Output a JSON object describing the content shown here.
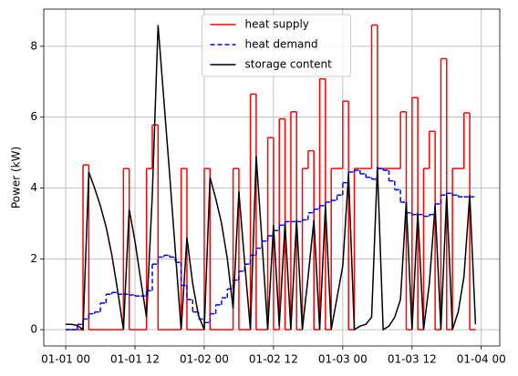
{
  "chart_data": {
    "type": "line",
    "ylabel": "Power (kW)",
    "x": [
      0,
      1,
      2,
      3,
      4,
      5,
      6,
      7,
      8,
      9,
      10,
      11,
      12,
      13,
      14,
      15,
      16,
      17,
      18,
      19,
      20,
      21,
      22,
      23,
      24,
      25,
      26,
      27,
      28,
      29,
      30,
      31,
      32,
      33,
      34,
      35,
      36,
      37,
      38,
      39,
      40,
      41,
      42,
      43,
      44,
      45,
      46,
      47,
      48,
      49,
      50,
      51,
      52,
      53,
      54,
      55,
      56,
      57,
      58,
      59,
      60,
      61,
      62,
      63,
      64,
      65,
      66,
      67,
      68,
      69,
      70,
      71
    ],
    "series": [
      {
        "name": "heat supply",
        "color": "#ff0000",
        "linestyle": "solid",
        "drawstyle": "steps-post",
        "values": [
          0,
          0,
          0,
          4.65,
          0,
          0,
          0,
          0,
          0,
          0,
          4.55,
          0,
          0,
          0,
          4.55,
          5.78,
          0,
          0,
          0,
          0,
          4.55,
          0,
          0,
          0,
          4.55,
          0,
          0,
          0,
          0,
          4.55,
          0,
          0,
          6.65,
          0,
          0,
          5.42,
          0,
          5.95,
          0,
          6.15,
          0,
          4.55,
          5.05,
          0,
          7.08,
          0,
          4.55,
          4.55,
          6.45,
          0,
          4.55,
          4.55,
          4.55,
          8.6,
          4.55,
          4.55,
          4.55,
          4.55,
          6.15,
          0,
          6.55,
          0,
          4.55,
          5.6,
          0,
          7.65,
          0,
          4.55,
          4.55,
          6.12,
          0,
          0
        ]
      },
      {
        "name": "heat demand",
        "color": "#0000ff",
        "linestyle": "dashed",
        "drawstyle": "steps-post",
        "values": [
          0,
          0,
          0.15,
          0.3,
          0.45,
          0.5,
          0.75,
          1.0,
          1.05,
          1.0,
          1.0,
          0.98,
          0.95,
          0.95,
          1.1,
          1.85,
          2.05,
          2.1,
          2.05,
          1.9,
          1.25,
          0.85,
          0.5,
          0.3,
          0.2,
          0.45,
          0.7,
          0.9,
          1.15,
          1.4,
          1.65,
          1.85,
          2.1,
          2.3,
          2.5,
          2.65,
          2.8,
          2.95,
          3.05,
          3.05,
          3.05,
          3.1,
          3.3,
          3.4,
          3.5,
          3.6,
          3.65,
          3.8,
          4.15,
          4.45,
          4.5,
          4.4,
          4.3,
          4.25,
          4.55,
          4.5,
          4.2,
          3.95,
          3.6,
          3.3,
          3.25,
          3.25,
          3.2,
          3.25,
          3.55,
          3.8,
          3.85,
          3.8,
          3.75,
          3.75,
          3.75,
          3.75
        ]
      },
      {
        "name": "storage content",
        "color": "#000000",
        "linestyle": "solid",
        "drawstyle": "default",
        "values": [
          0.15,
          0.15,
          0.12,
          0,
          4.45,
          4.0,
          3.5,
          2.9,
          2.1,
          1.1,
          0,
          3.4,
          2.5,
          1.4,
          0.35,
          3.8,
          8.6,
          6.5,
          4.4,
          2.2,
          0,
          2.6,
          1.3,
          0.4,
          0,
          4.3,
          3.7,
          3.0,
          2.0,
          0.6,
          3.9,
          1.9,
          0,
          4.9,
          2.5,
          0,
          2.95,
          0.1,
          3.0,
          0,
          3.1,
          0,
          1.5,
          3.1,
          0,
          3.5,
          0,
          0.9,
          1.8,
          4.4,
          0,
          0.1,
          0.15,
          0.35,
          4.6,
          0,
          0.1,
          0.35,
          0.85,
          3.6,
          0,
          3.3,
          0,
          1.3,
          3.5,
          0,
          3.8,
          0,
          0.5,
          1.5,
          3.8,
          0.15
        ]
      }
    ],
    "xlim": [
      -3.8,
      75.2
    ],
    "xticks": [
      {
        "value": 0,
        "label": "01-01 00"
      },
      {
        "value": 12,
        "label": "01-01 12"
      },
      {
        "value": 24,
        "label": "01-02 00"
      },
      {
        "value": 36,
        "label": "01-02 12"
      },
      {
        "value": 48,
        "label": "01-03 00"
      },
      {
        "value": 60,
        "label": "01-03 12"
      },
      {
        "value": 72,
        "label": "01-04 00"
      }
    ],
    "ylim": [
      -0.46,
      9.05
    ],
    "yticks": [
      0,
      2,
      4,
      6,
      8
    ],
    "grid": true,
    "legend": "upper center"
  }
}
